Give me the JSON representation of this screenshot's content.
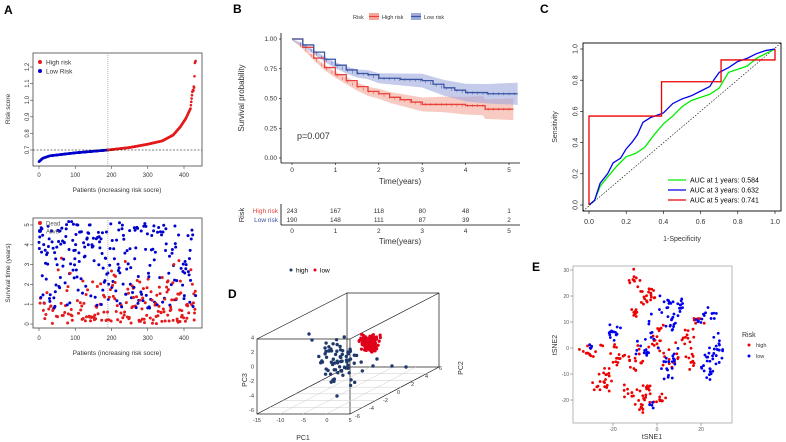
{
  "panels": {
    "a": "A",
    "b": "B",
    "c": "C",
    "d": "D",
    "e": "E"
  },
  "chart_data": [
    {
      "id": "A-top",
      "type": "scatter",
      "ylabel": "Risk score",
      "xlabel": "Patients (increasing risk socre)",
      "legend": [
        {
          "name": "High risk",
          "color": "#e41a1c"
        },
        {
          "name": "Low Risk",
          "color": "#0000cc"
        }
      ],
      "legend_position": "top-left",
      "xticks": [
        "0",
        "100",
        "200",
        "300",
        "400"
      ],
      "xlim": [
        -10,
        450
      ],
      "yticks": [
        "0.7",
        "0.8",
        "0.9",
        "1.0",
        "1.1",
        "1.2"
      ],
      "ylim": [
        0.61,
        1.28
      ],
      "cutoff_patient": 190,
      "cutoff_score": 0.7,
      "n_patients": 433,
      "curve": [
        [
          0,
          0.63
        ],
        [
          10,
          0.65
        ],
        [
          30,
          0.665
        ],
        [
          100,
          0.683
        ],
        [
          190,
          0.7
        ],
        [
          250,
          0.715
        ],
        [
          300,
          0.735
        ],
        [
          340,
          0.755
        ],
        [
          370,
          0.79
        ],
        [
          390,
          0.84
        ],
        [
          405,
          0.89
        ],
        [
          418,
          0.95
        ],
        [
          423,
          1.05
        ],
        [
          428,
          1.08
        ],
        [
          430,
          1.22
        ],
        [
          433,
          1.25
        ]
      ]
    },
    {
      "id": "A-bottom",
      "type": "scatter",
      "ylabel": "Survival time (years)",
      "xlabel": "Patients (increasing risk socre)",
      "legend": [
        {
          "name": "Dead",
          "color": "#e41a1c"
        },
        {
          "name": "Alive",
          "color": "#0000cc"
        }
      ],
      "legend_position": "top-left",
      "xticks": [
        "0",
        "100",
        "200",
        "300",
        "400"
      ],
      "xlim": [
        -10,
        450
      ],
      "yticks": [
        "0",
        "1",
        "2",
        "3",
        "4",
        "5"
      ],
      "ylim": [
        -0.2,
        5.4
      ],
      "cutoff_patient": 190
    },
    {
      "id": "B",
      "type": "line",
      "legend_title": "Risk",
      "series": [
        {
          "name": "High risk",
          "color": "#e8403a",
          "fill": "#f4a89a",
          "points": [
            [
              0,
              1
            ],
            [
              0.25,
              0.93
            ],
            [
              0.5,
              0.84
            ],
            [
              0.75,
              0.76
            ],
            [
              1,
              0.7
            ],
            [
              1.25,
              0.65
            ],
            [
              1.5,
              0.6
            ],
            [
              1.75,
              0.56
            ],
            [
              2,
              0.54
            ],
            [
              2.25,
              0.51
            ],
            [
              2.5,
              0.49
            ],
            [
              2.75,
              0.47
            ],
            [
              3,
              0.45
            ],
            [
              3.5,
              0.45
            ],
            [
              4,
              0.44
            ],
            [
              4.4,
              0.44
            ],
            [
              4.45,
              0.41
            ],
            [
              5.1,
              0.41
            ]
          ]
        },
        {
          "name": "Low risk",
          "color": "#3955a3",
          "fill": "#9fa9dc",
          "points": [
            [
              0,
              1
            ],
            [
              0.25,
              0.95
            ],
            [
              0.5,
              0.89
            ],
            [
              0.75,
              0.83
            ],
            [
              1,
              0.78
            ],
            [
              1.25,
              0.74
            ],
            [
              1.5,
              0.71
            ],
            [
              1.75,
              0.7
            ],
            [
              2,
              0.67
            ],
            [
              2.5,
              0.66
            ],
            [
              3,
              0.65
            ],
            [
              3.25,
              0.62
            ],
            [
              3.5,
              0.59
            ],
            [
              3.75,
              0.57
            ],
            [
              4,
              0.55
            ],
            [
              4.5,
              0.54
            ],
            [
              5.2,
              0.54
            ]
          ]
        }
      ],
      "annotation": "p=0.007",
      "xlabel": "Time(years)",
      "ylabel": "Survival probability",
      "xticks": [
        "0",
        "1",
        "2",
        "3",
        "4",
        "5"
      ],
      "xlim": [
        -0.25,
        5.25
      ],
      "yticks": [
        "0.00",
        "0.25",
        "0.50",
        "0.75",
        "1.00"
      ],
      "ylim": [
        -0.05,
        1.05
      ],
      "risk_table": {
        "title": "Risk",
        "rows": [
          {
            "label": "High risk",
            "color": "#e8403a",
            "values": [
              "243",
              "167",
              "118",
              "80",
              "48",
              "1"
            ]
          },
          {
            "label": "Low risk",
            "color": "#3955a3",
            "values": [
              "190",
              "148",
              "111",
              "87",
              "39",
              "2"
            ]
          }
        ],
        "xlabel": "Time(years)"
      }
    },
    {
      "id": "C",
      "type": "line",
      "xlabel": "1-Specificity",
      "ylabel": "Sensitivity",
      "xticks": [
        "0.0",
        "0.2",
        "0.4",
        "0.6",
        "0.8",
        "1.0"
      ],
      "yticks": [
        "0.0",
        "0.2",
        "0.4",
        "0.6",
        "0.8",
        "1.0"
      ],
      "xlim": [
        -0.03,
        1.03
      ],
      "ylim": [
        -0.03,
        1.03
      ],
      "legend_position": "bottom-right",
      "series": [
        {
          "name": "AUC at 1 years: 0.584",
          "color": "#00ee00",
          "points": [
            [
              0,
              0
            ],
            [
              0.03,
              0.03
            ],
            [
              0.06,
              0.12
            ],
            [
              0.1,
              0.18
            ],
            [
              0.15,
              0.25
            ],
            [
              0.2,
              0.31
            ],
            [
              0.25,
              0.33
            ],
            [
              0.3,
              0.37
            ],
            [
              0.35,
              0.45
            ],
            [
              0.4,
              0.52
            ],
            [
              0.45,
              0.57
            ],
            [
              0.5,
              0.63
            ],
            [
              0.55,
              0.67
            ],
            [
              0.6,
              0.69
            ],
            [
              0.65,
              0.71
            ],
            [
              0.7,
              0.75
            ],
            [
              0.75,
              0.85
            ],
            [
              0.8,
              0.87
            ],
            [
              0.85,
              0.89
            ],
            [
              0.9,
              0.94
            ],
            [
              0.95,
              0.97
            ],
            [
              1,
              1
            ]
          ]
        },
        {
          "name": "AUC at 3 years: 0.632",
          "color": "#0000ee",
          "points": [
            [
              0,
              0
            ],
            [
              0.03,
              0.03
            ],
            [
              0.06,
              0.14
            ],
            [
              0.1,
              0.2
            ],
            [
              0.13,
              0.27
            ],
            [
              0.17,
              0.3
            ],
            [
              0.2,
              0.36
            ],
            [
              0.23,
              0.4
            ],
            [
              0.26,
              0.45
            ],
            [
              0.29,
              0.53
            ],
            [
              0.33,
              0.56
            ],
            [
              0.4,
              0.59
            ],
            [
              0.45,
              0.65
            ],
            [
              0.5,
              0.68
            ],
            [
              0.55,
              0.7
            ],
            [
              0.6,
              0.73
            ],
            [
              0.65,
              0.76
            ],
            [
              0.67,
              0.8
            ],
            [
              0.7,
              0.85
            ],
            [
              0.75,
              0.88
            ],
            [
              0.8,
              0.92
            ],
            [
              0.85,
              0.94
            ],
            [
              0.9,
              0.97
            ],
            [
              0.95,
              0.99
            ],
            [
              1,
              1
            ]
          ]
        },
        {
          "name": "AUC at 5 years: 0.741",
          "color": "#ee0000",
          "points": [
            [
              0,
              0
            ],
            [
              0,
              0.57
            ],
            [
              0.39,
              0.57
            ],
            [
              0.39,
              0.79
            ],
            [
              0.71,
              0.79
            ],
            [
              0.71,
              0.93
            ],
            [
              1,
              0.93
            ],
            [
              1,
              1
            ]
          ]
        }
      ],
      "diagonal": true
    },
    {
      "id": "D",
      "type": "scatter",
      "legend": [
        {
          "name": "high",
          "color": "#1f3a6a"
        },
        {
          "name": "low",
          "color": "#e0001a"
        }
      ],
      "legend_position": "top",
      "xlabel": "PC1",
      "ylabel": "PC2",
      "zlabel": "PC3",
      "xticks": [
        "-15",
        "-10",
        "-5",
        "0",
        "5"
      ],
      "yticks": [
        "-6",
        "-4",
        "-2",
        "0",
        "2",
        "4",
        "6"
      ],
      "zticks": [
        "-6",
        "-4",
        "-2",
        "0",
        "2",
        "4"
      ]
    },
    {
      "id": "E",
      "type": "scatter",
      "xlabel": "tSNE1",
      "ylabel": "tSNE2",
      "xticks": [
        "-20",
        "0",
        "20"
      ],
      "yticks": [
        "-20",
        "-10",
        "0",
        "10",
        "20",
        "30"
      ],
      "xlim": [
        -36,
        32
      ],
      "ylim": [
        -29,
        31
      ],
      "legend_title": "Risk",
      "legend_position": "right",
      "legend": [
        {
          "name": "high",
          "color": "#ee0000"
        },
        {
          "name": "low",
          "color": "#0000ee"
        }
      ]
    }
  ]
}
